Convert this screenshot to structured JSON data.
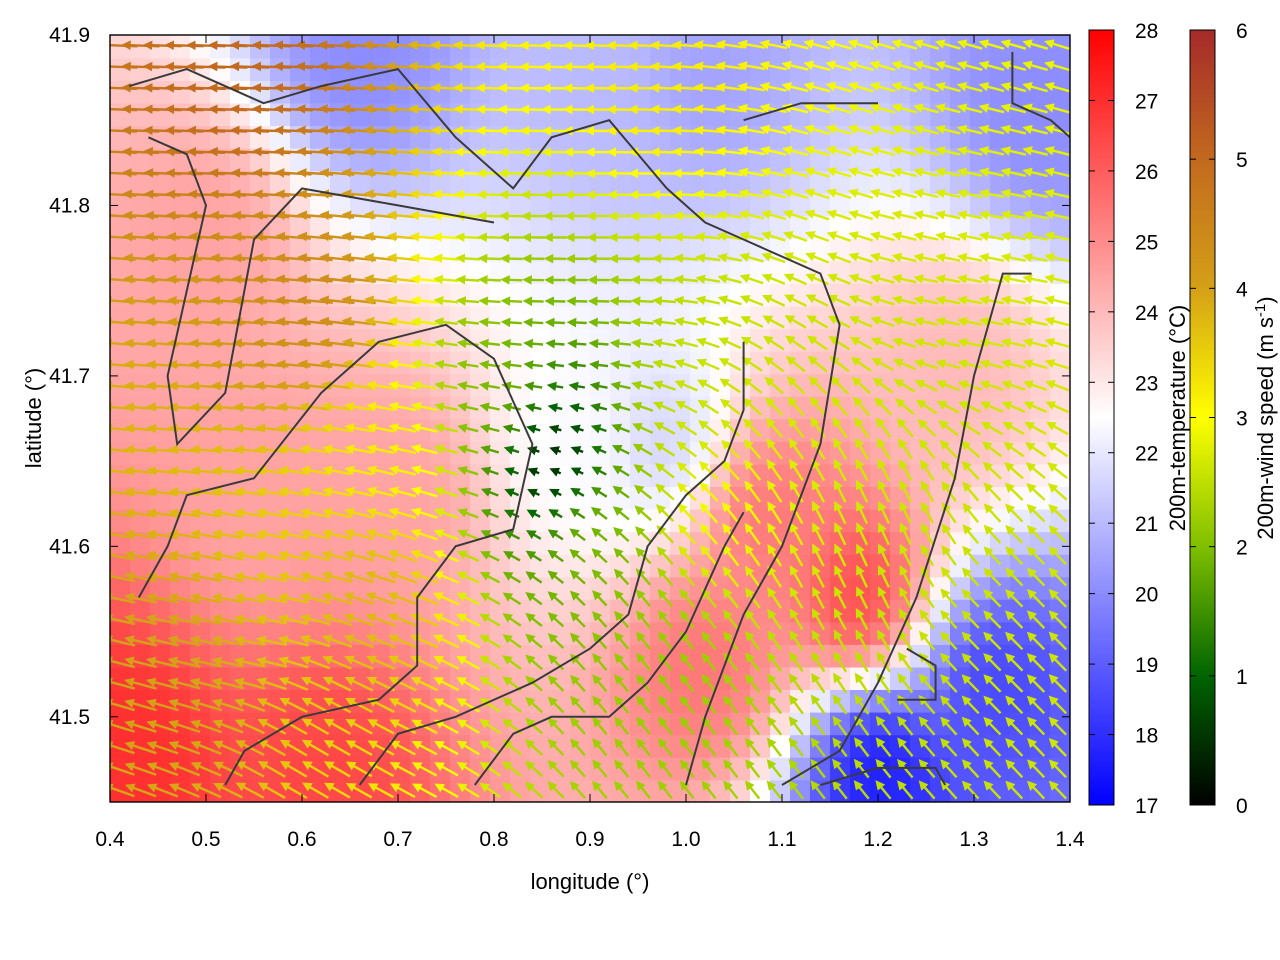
{
  "chart_data": {
    "type": "heatmap",
    "title": "",
    "xlabel": "longitude (°)",
    "ylabel": "latitude (°)",
    "xlim": [
      0.4,
      1.4
    ],
    "ylim": [
      41.45,
      41.9
    ],
    "x_ticks": [
      0.4,
      0.5,
      0.6,
      0.7,
      0.8,
      0.9,
      1.0,
      1.1,
      1.2,
      1.3,
      1.4
    ],
    "y_ticks": [
      41.5,
      41.6,
      41.7,
      41.8,
      41.9
    ],
    "x_tick_labels": [
      "0.4",
      "0.5",
      "0.6",
      "0.7",
      "0.8",
      "0.9",
      "1.0",
      "1.1",
      "1.2",
      "1.3",
      "1.4"
    ],
    "y_tick_labels": [
      "41.5",
      "41.6",
      "41.7",
      "41.8",
      "41.9"
    ],
    "grid": false,
    "temperature_colorbar": {
      "label": "200m-temperature (°C)",
      "range": [
        17,
        28
      ],
      "ticks": [
        17,
        18,
        19,
        20,
        21,
        22,
        23,
        24,
        25,
        26,
        27,
        28
      ],
      "tick_labels": [
        "17",
        "18",
        "19",
        "20",
        "21",
        "22",
        "23",
        "24",
        "25",
        "26",
        "27",
        "28"
      ],
      "colors": [
        "#0000ff",
        "#ffffff",
        "#ff0000"
      ]
    },
    "wind_colorbar": {
      "label": "200m-wind speed (m s-1)",
      "label_main": "200m-wind speed (m s",
      "label_sup": "-1",
      "label_end": ")",
      "range": [
        0,
        6
      ],
      "ticks": [
        0,
        1,
        2,
        3,
        4,
        5,
        6
      ],
      "tick_labels": [
        "0",
        "1",
        "2",
        "3",
        "4",
        "5",
        "6"
      ],
      "colors": [
        "#000000",
        "#006400",
        "#7fbf00",
        "#ffff00",
        "#d4a017",
        "#c2691e",
        "#a52a2a"
      ]
    },
    "temperature_features": [
      {
        "lon": 0.89,
        "lat": 41.66,
        "temp": 22.4
      },
      {
        "lon": 0.7,
        "lat": 41.63,
        "temp": 24.5
      },
      {
        "lon": 0.55,
        "lat": 41.62,
        "temp": 24.5
      },
      {
        "lon": 1.18,
        "lat": 41.57,
        "temp": 26.5
      },
      {
        "lon": 1.08,
        "lat": 41.62,
        "temp": 25.5
      },
      {
        "lon": 1.2,
        "lat": 41.47,
        "temp": 17.5
      },
      {
        "lon": 1.32,
        "lat": 41.52,
        "temp": 18.5
      },
      {
        "lon": 1.02,
        "lat": 41.53,
        "temp": 25.5
      },
      {
        "lon": 0.62,
        "lat": 41.47,
        "temp": 26.5
      },
      {
        "lon": 0.42,
        "lat": 41.48,
        "temp": 27.0
      },
      {
        "lon": 0.66,
        "lat": 41.89,
        "temp": 20.0
      },
      {
        "lon": 0.92,
        "lat": 41.87,
        "temp": 21.0
      },
      {
        "lon": 1.02,
        "lat": 41.88,
        "temp": 20.5
      },
      {
        "lon": 1.37,
        "lat": 41.86,
        "temp": 20.0
      },
      {
        "lon": 0.98,
        "lat": 41.66,
        "temp": 21.5
      },
      {
        "lon": 0.5,
        "lat": 41.78,
        "temp": 24.5
      },
      {
        "lon": 1.28,
        "lat": 41.7,
        "temp": 24.0
      }
    ],
    "wind_features": [
      {
        "lon": 0.86,
        "lat": 41.65,
        "speed": 0.2
      },
      {
        "lon": 0.91,
        "lat": 41.6,
        "speed": 2.0
      },
      {
        "lon": 0.8,
        "lat": 41.69,
        "speed": 2.0
      },
      {
        "lon": 0.7,
        "lat": 41.66,
        "speed": 3.2
      },
      {
        "lon": 0.68,
        "lat": 41.57,
        "speed": 3.8
      },
      {
        "lon": 0.62,
        "lat": 41.74,
        "speed": 4.4
      },
      {
        "lon": 0.98,
        "lat": 41.53,
        "speed": 2.2
      },
      {
        "lon": 1.02,
        "lat": 41.68,
        "speed": 2.6
      },
      {
        "lon": 1.03,
        "lat": 41.62,
        "speed": 3.0
      },
      {
        "lon": 0.45,
        "lat": 41.52,
        "speed": 4.0
      },
      {
        "lon": 0.98,
        "lat": 41.88,
        "speed": 3.2
      },
      {
        "lon": 0.55,
        "lat": 41.88,
        "speed": 5.0
      }
    ],
    "wind_flow_features": [
      {
        "lon": 0.5,
        "lat": 41.88,
        "u": -6.0,
        "v": 0.2
      },
      {
        "lon": 0.9,
        "lat": 41.8,
        "u": -6.0,
        "v": 0.0
      },
      {
        "lon": 1.3,
        "lat": 41.75,
        "u": -5.5,
        "v": 1.0
      },
      {
        "lon": 0.5,
        "lat": 41.7,
        "u": -6.0,
        "v": 0.4
      },
      {
        "lon": 1.2,
        "lat": 41.6,
        "u": -2.5,
        "v": 5.5
      },
      {
        "lon": 1.32,
        "lat": 41.55,
        "u": -4.0,
        "v": 4.0
      },
      {
        "lon": 0.55,
        "lat": 41.55,
        "u": -5.5,
        "v": 1.0
      },
      {
        "lon": 0.6,
        "lat": 41.48,
        "u": -5.0,
        "v": 3.0
      },
      {
        "lon": 1.0,
        "lat": 41.5,
        "u": -3.5,
        "v": 4.5
      },
      {
        "lon": 0.88,
        "lat": 41.64,
        "u": 0.0,
        "v": 0.0
      }
    ],
    "contours": [
      {
        "name": "",
        "points": [
          [
            0.42,
            41.87
          ],
          [
            0.48,
            41.88
          ],
          [
            0.56,
            41.86
          ],
          [
            0.62,
            41.87
          ],
          [
            0.7,
            41.88
          ],
          [
            0.76,
            41.84
          ],
          [
            0.82,
            41.81
          ],
          [
            0.86,
            41.84
          ],
          [
            0.92,
            41.85
          ],
          [
            0.98,
            41.81
          ],
          [
            1.02,
            41.79
          ],
          [
            1.06,
            41.78
          ],
          [
            1.1,
            41.77
          ],
          [
            1.14,
            41.76
          ],
          [
            1.16,
            41.73
          ],
          [
            1.14,
            41.66
          ],
          [
            1.1,
            41.6
          ],
          [
            1.06,
            41.56
          ],
          [
            1.02,
            41.5
          ],
          [
            1.0,
            41.46
          ]
        ]
      },
      {
        "name": "",
        "points": [
          [
            0.44,
            41.84
          ],
          [
            0.48,
            41.83
          ],
          [
            0.5,
            41.8
          ],
          [
            0.48,
            41.75
          ],
          [
            0.46,
            41.7
          ],
          [
            0.47,
            41.66
          ],
          [
            0.52,
            41.69
          ],
          [
            0.55,
            41.78
          ],
          [
            0.6,
            41.81
          ],
          [
            0.7,
            41.8
          ],
          [
            0.8,
            41.79
          ]
        ]
      },
      {
        "name": "",
        "points": [
          [
            0.43,
            41.57
          ],
          [
            0.46,
            41.6
          ],
          [
            0.48,
            41.63
          ],
          [
            0.55,
            41.64
          ],
          [
            0.62,
            41.69
          ],
          [
            0.68,
            41.72
          ],
          [
            0.75,
            41.73
          ],
          [
            0.8,
            41.71
          ],
          [
            0.84,
            41.66
          ],
          [
            0.82,
            41.61
          ],
          [
            0.76,
            41.6
          ],
          [
            0.72,
            41.57
          ],
          [
            0.72,
            41.53
          ],
          [
            0.68,
            41.51
          ],
          [
            0.6,
            41.5
          ],
          [
            0.54,
            41.48
          ],
          [
            0.52,
            41.46
          ]
        ]
      },
      {
        "name": "",
        "points": [
          [
            0.66,
            41.46
          ],
          [
            0.7,
            41.49
          ],
          [
            0.76,
            41.5
          ],
          [
            0.84,
            41.52
          ],
          [
            0.9,
            41.54
          ],
          [
            0.94,
            41.56
          ],
          [
            0.96,
            41.6
          ],
          [
            1.0,
            41.63
          ],
          [
            1.04,
            41.65
          ],
          [
            1.06,
            41.68
          ],
          [
            1.06,
            41.72
          ]
        ]
      },
      {
        "name": "",
        "points": [
          [
            0.78,
            41.46
          ],
          [
            0.82,
            41.49
          ],
          [
            0.86,
            41.5
          ],
          [
            0.92,
            41.5
          ],
          [
            0.96,
            41.52
          ],
          [
            1.0,
            41.55
          ],
          [
            1.04,
            41.6
          ],
          [
            1.06,
            41.62
          ]
        ]
      },
      {
        "name": "",
        "points": [
          [
            1.1,
            41.46
          ],
          [
            1.16,
            41.48
          ],
          [
            1.2,
            41.52
          ],
          [
            1.24,
            41.57
          ],
          [
            1.28,
            41.64
          ],
          [
            1.3,
            41.7
          ],
          [
            1.33,
            41.76
          ],
          [
            1.36,
            41.76
          ]
        ]
      },
      {
        "name": "",
        "points": [
          [
            1.14,
            41.46
          ],
          [
            1.2,
            41.47
          ],
          [
            1.26,
            41.47
          ],
          [
            1.27,
            41.46
          ]
        ]
      },
      {
        "name": "",
        "points": [
          [
            1.22,
            41.51
          ],
          [
            1.26,
            41.51
          ],
          [
            1.26,
            41.53
          ],
          [
            1.23,
            41.54
          ]
        ]
      },
      {
        "name": "",
        "points": [
          [
            1.34,
            41.89
          ],
          [
            1.34,
            41.86
          ],
          [
            1.38,
            41.85
          ],
          [
            1.4,
            41.84
          ]
        ]
      },
      {
        "name": "",
        "points": [
          [
            1.06,
            41.85
          ],
          [
            1.12,
            41.86
          ],
          [
            1.2,
            41.86
          ]
        ]
      }
    ]
  }
}
